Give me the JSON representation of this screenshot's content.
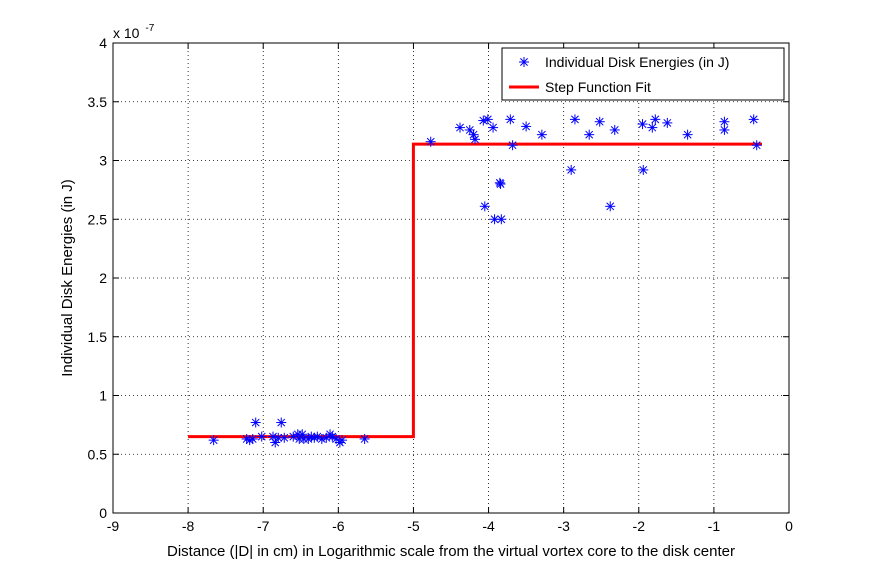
{
  "chart_data": {
    "type": "scatter",
    "xlabel": "Distance (|D| in cm) in Logarithmic scale from the virtual vortex core to the disk center",
    "ylabel": "Individual Disk Energies (in J)",
    "xlim": [
      -9,
      0
    ],
    "ylim": [
      0,
      4
    ],
    "xticks": [
      "-9",
      "-8",
      "-7",
      "-6",
      "-5",
      "-4",
      "-3",
      "-2",
      "-1",
      "0"
    ],
    "yticks": [
      "0",
      "0.5",
      "1",
      "1.5",
      "2",
      "2.5",
      "3",
      "3.5",
      "4"
    ],
    "y_exponent_base": "x 10",
    "y_exponent_power": "-7",
    "grid": true,
    "legend_position": "top-right",
    "colors": {
      "scatter": "#0000ff",
      "fit": "#ff0000"
    },
    "series": [
      {
        "name": "Individual Disk Energies (in J)",
        "kind": "scatter",
        "marker": "asterisk",
        "points": [
          [
            -7.66,
            0.62
          ],
          [
            -7.22,
            0.63
          ],
          [
            -7.18,
            0.62
          ],
          [
            -7.14,
            0.63
          ],
          [
            -7.1,
            0.77
          ],
          [
            -7.02,
            0.65
          ],
          [
            -6.87,
            0.65
          ],
          [
            -6.84,
            0.6
          ],
          [
            -6.8,
            0.64
          ],
          [
            -6.76,
            0.77
          ],
          [
            -6.72,
            0.64
          ],
          [
            -6.6,
            0.65
          ],
          [
            -6.54,
            0.67
          ],
          [
            -6.52,
            0.63
          ],
          [
            -6.48,
            0.67
          ],
          [
            -6.46,
            0.63
          ],
          [
            -6.4,
            0.63
          ],
          [
            -6.36,
            0.65
          ],
          [
            -6.32,
            0.64
          ],
          [
            -6.28,
            0.65
          ],
          [
            -6.22,
            0.63
          ],
          [
            -6.16,
            0.64
          ],
          [
            -6.11,
            0.67
          ],
          [
            -6.08,
            0.65
          ],
          [
            -6.03,
            0.63
          ],
          [
            -5.98,
            0.6
          ],
          [
            -5.95,
            0.62
          ],
          [
            -5.65,
            0.63
          ],
          [
            -4.77,
            3.16
          ],
          [
            -4.38,
            3.28
          ],
          [
            -4.25,
            3.26
          ],
          [
            -4.2,
            3.22
          ],
          [
            -4.18,
            3.18
          ],
          [
            -4.07,
            3.34
          ],
          [
            -4.05,
            2.61
          ],
          [
            -4.01,
            3.35
          ],
          [
            -3.94,
            3.28
          ],
          [
            -3.92,
            2.5
          ],
          [
            -3.85,
            2.81
          ],
          [
            -3.84,
            2.8
          ],
          [
            -3.83,
            2.5
          ],
          [
            -3.71,
            3.35
          ],
          [
            -3.68,
            3.13
          ],
          [
            -3.5,
            3.29
          ],
          [
            -3.29,
            3.22
          ],
          [
            -2.9,
            2.92
          ],
          [
            -2.85,
            3.35
          ],
          [
            -2.66,
            3.22
          ],
          [
            -2.52,
            3.33
          ],
          [
            -2.38,
            2.61
          ],
          [
            -2.32,
            3.26
          ],
          [
            -1.95,
            3.31
          ],
          [
            -1.94,
            2.92
          ],
          [
            -1.82,
            3.28
          ],
          [
            -1.78,
            3.35
          ],
          [
            -1.62,
            3.32
          ],
          [
            -1.35,
            3.22
          ],
          [
            -0.86,
            3.33
          ],
          [
            -0.86,
            3.26
          ],
          [
            -0.47,
            3.35
          ],
          [
            -0.43,
            3.13
          ]
        ]
      },
      {
        "name": "Step Function Fit",
        "kind": "line",
        "points": [
          [
            -8,
            0.65
          ],
          [
            -5,
            0.65
          ],
          [
            -5,
            3.14
          ],
          [
            -0.36,
            3.14
          ]
        ]
      }
    ]
  }
}
